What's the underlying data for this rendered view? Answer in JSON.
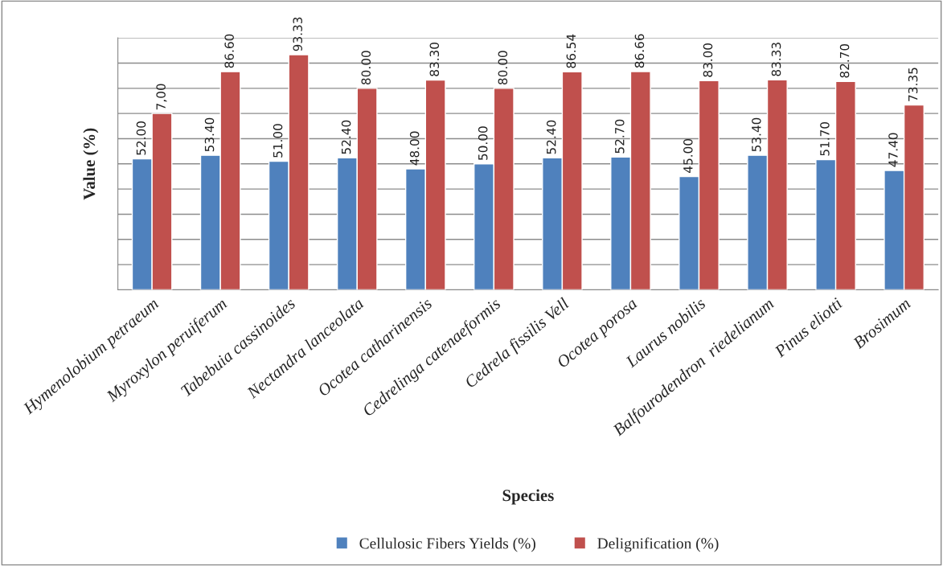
{
  "chart_data": {
    "type": "bar",
    "xlabel": "Species",
    "ylabel": "Value (%)",
    "categories": [
      "Hymenolobium petraeum",
      "Myroxylon peruiferum",
      "Tabebuia cassinoides",
      "Nectandra lanceolata",
      "Ocotea catharinensis",
      "Cedrelinga catenaeformis",
      "Cedrela fissilis Vell",
      "Ocotea porosa",
      "Laurus nobilis",
      "Balfourodendron  riedelianum",
      "Pinus eliotti",
      "Brosimum"
    ],
    "series": [
      {
        "name": "Cellulosic Fibers Yields (%)",
        "color": "#4f81bd",
        "values": [
          52.0,
          53.4,
          51.0,
          52.4,
          48.0,
          50.0,
          52.4,
          52.7,
          45.0,
          53.4,
          51.7,
          47.4
        ],
        "value_labels": [
          "52.00",
          "53.40",
          "51.00",
          "52.40",
          "48.00",
          "50.00",
          "52.40",
          "52.70",
          "45.00",
          "53.40",
          "51.70",
          "47.40"
        ]
      },
      {
        "name": "Delignification (%)",
        "color": "#c0504d",
        "values": [
          70.0,
          86.6,
          93.33,
          80.0,
          83.3,
          80.0,
          86.54,
          86.66,
          83.0,
          83.33,
          82.7,
          73.35
        ],
        "value_labels": [
          null,
          "86.60",
          "93.33",
          "80.00",
          "83.30",
          "80.00",
          "86.54",
          "86.66",
          "83.00",
          "83.33",
          "82.70",
          "73.35"
        ]
      }
    ],
    "ylim": [
      0,
      100
    ],
    "yticks": [
      {
        "value": 0,
        "label": null
      },
      {
        "value": 10,
        "label": null
      },
      {
        "value": 20,
        "label": null
      },
      {
        "value": 30,
        "label": null
      },
      {
        "value": 40,
        "label": null
      },
      {
        "value": 50,
        "label": null
      },
      {
        "value": 60,
        "label": null
      },
      {
        "value": 70,
        "label": null
      },
      {
        "value": 80,
        "label": null
      },
      {
        "value": 90,
        "label": null
      },
      {
        "value": 100,
        "label": null
      }
    ],
    "annotations": [
      {
        "text": "7,00",
        "x": "Hymenolobium petraeum",
        "y": 70.0
      }
    ],
    "tick_labels": "x",
    "grid": "y",
    "legend": "bottom"
  }
}
